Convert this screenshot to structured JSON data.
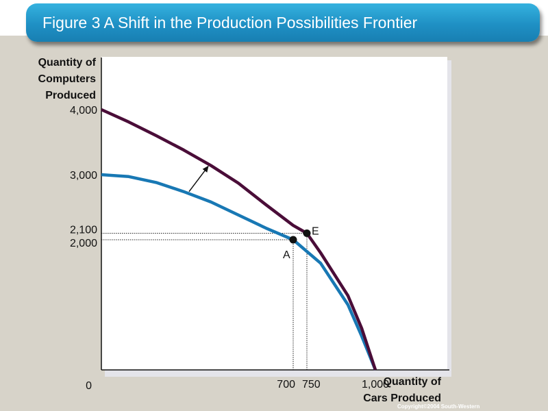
{
  "header": {
    "title": "Figure 3 A Shift in the Production Possibilities Frontier"
  },
  "chart_data": {
    "type": "line",
    "xlabel_lines": [
      "Quantity of",
      "Cars Produced"
    ],
    "ylabel_lines": [
      "Quantity of",
      "Computers",
      "Produced"
    ],
    "xlim": [
      0,
      1200
    ],
    "ylim": [
      0,
      4800
    ],
    "origin_label": "0",
    "x_ticks": [
      {
        "value": 700,
        "label": "700"
      },
      {
        "value": 750,
        "label": "750"
      },
      {
        "value": 1000,
        "label": "1,000"
      }
    ],
    "y_ticks": [
      {
        "value": 2000,
        "label": "2,000"
      },
      {
        "value": 2100,
        "label": "2,100"
      },
      {
        "value": 3000,
        "label": "3,000"
      },
      {
        "value": 4000,
        "label": "4,000"
      }
    ],
    "series": [
      {
        "color": "#1878b4",
        "x": [
          0,
          100,
          200,
          300,
          400,
          500,
          600,
          700,
          800,
          900,
          950,
          1000
        ],
        "y": [
          3000,
          2970,
          2880,
          2740,
          2580,
          2380,
          2180,
          2000,
          1640,
          1000,
          520,
          0
        ]
      },
      {
        "color": "#4a0d38",
        "x": [
          0,
          100,
          200,
          300,
          400,
          500,
          600,
          700,
          750,
          800,
          900,
          950,
          1000
        ],
        "y": [
          4000,
          3810,
          3600,
          3380,
          3140,
          2870,
          2540,
          2220,
          2100,
          1800,
          1140,
          640,
          0
        ]
      }
    ],
    "points": [
      {
        "label": "A",
        "x": 700,
        "y": 2000
      },
      {
        "label": "E",
        "x": 750,
        "y": 2100
      }
    ],
    "shift_arrow": {
      "from": [
        320,
        2740
      ],
      "to": [
        390,
        3130
      ]
    }
  },
  "footer": {
    "copyright": "Copyright©2004 South-Western"
  }
}
